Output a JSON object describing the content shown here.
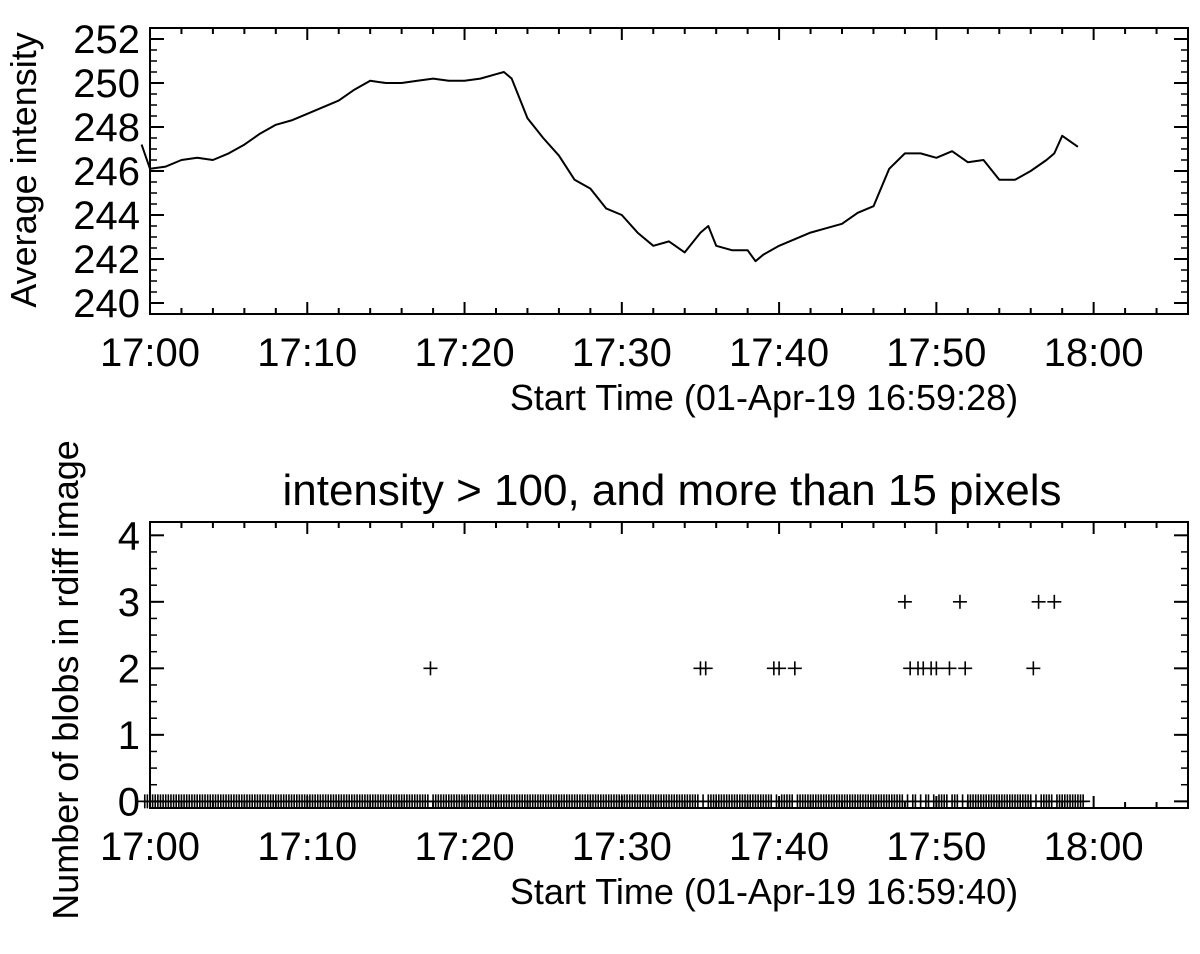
{
  "chart_data": [
    {
      "type": "line",
      "title": "",
      "xlabel": "Start Time (01-Apr-19 16:59:28)",
      "ylabel": "Average intensity",
      "xlim": [
        "17:00",
        "18:06"
      ],
      "ylim": [
        239.5,
        252.5
      ],
      "x_ticks": [
        "17:00",
        "17:10",
        "17:20",
        "17:30",
        "17:40",
        "17:50",
        "18:00"
      ],
      "y_ticks": [
        "240",
        "242",
        "244",
        "246",
        "248",
        "250",
        "252"
      ],
      "grid": false,
      "series": [
        {
          "x": [
            "16:59:28",
            "17:00:00",
            "17:01:00",
            "17:02:00",
            "17:03:00",
            "17:04:00",
            "17:05:00",
            "17:06:00",
            "17:07:00",
            "17:08:00",
            "17:09:00",
            "17:10:00",
            "17:11:00",
            "17:12:00",
            "17:13:00",
            "17:14:00",
            "17:15:00",
            "17:16:00",
            "17:17:00",
            "17:18:00",
            "17:19:00",
            "17:20:00",
            "17:21:00",
            "17:22:00",
            "17:22:30",
            "17:23:00",
            "17:24:00",
            "17:25:00",
            "17:26:00",
            "17:27:00",
            "17:28:00",
            "17:29:00",
            "17:30:00",
            "17:31:00",
            "17:32:00",
            "17:33:00",
            "17:34:00",
            "17:35:00",
            "17:35:30",
            "17:36:00",
            "17:37:00",
            "17:38:00",
            "17:38:30",
            "17:39:00",
            "17:40:00",
            "17:41:00",
            "17:42:00",
            "17:43:00",
            "17:44:00",
            "17:45:00",
            "17:46:00",
            "17:47:00",
            "17:48:00",
            "17:49:00",
            "17:50:00",
            "17:51:00",
            "17:52:00",
            "17:53:00",
            "17:54:00",
            "17:55:00",
            "17:56:00",
            "17:57:00",
            "17:57:30",
            "17:58:00",
            "17:59:00"
          ],
          "y": [
            247.2,
            246.1,
            246.2,
            246.5,
            246.6,
            246.5,
            246.8,
            247.2,
            247.7,
            248.1,
            248.3,
            248.6,
            248.9,
            249.2,
            249.7,
            250.1,
            250.0,
            250.0,
            250.1,
            250.2,
            250.1,
            250.1,
            250.2,
            250.4,
            250.5,
            250.2,
            248.4,
            247.5,
            246.7,
            245.6,
            245.2,
            244.3,
            244.0,
            243.2,
            242.6,
            242.8,
            242.3,
            243.2,
            243.5,
            242.6,
            242.4,
            242.4,
            241.9,
            242.2,
            242.6,
            242.9,
            243.2,
            243.4,
            243.6,
            244.1,
            244.4,
            246.1,
            246.8,
            246.8,
            246.6,
            246.9,
            246.4,
            246.5,
            245.6,
            245.6,
            246.0,
            246.5,
            246.8,
            247.6,
            247.1
          ]
        }
      ]
    },
    {
      "type": "scatter",
      "title": "intensity > 100, and more than 15 pixels",
      "xlabel": "Start Time (01-Apr-19 16:59:40)",
      "ylabel": "Number of blobs in rdiff image",
      "xlim": [
        "17:00",
        "18:06"
      ],
      "ylim": [
        -0.1,
        4.2
      ],
      "x_ticks": [
        "17:00",
        "17:10",
        "17:20",
        "17:30",
        "17:40",
        "17:50",
        "18:00"
      ],
      "y_ticks": [
        "0",
        "1",
        "2",
        "3",
        "4"
      ],
      "grid": false,
      "nonzero_points": {
        "x": [
          "17:17:50",
          "17:35:00",
          "17:35:20",
          "17:39:40",
          "17:40:00",
          "17:41:00",
          "17:48:00",
          "17:48:20",
          "17:48:50",
          "17:49:10",
          "17:49:40",
          "17:50:00",
          "17:50:50",
          "17:51:30",
          "17:51:50",
          "17:56:10",
          "17:56:30",
          "17:57:30"
        ],
        "y": [
          2,
          2,
          2,
          2,
          2,
          2,
          3,
          2,
          2,
          2,
          2,
          2,
          2,
          3,
          2,
          2,
          3,
          3
        ]
      },
      "zero_range": [
        "16:59:40",
        "17:59:20"
      ]
    }
  ]
}
